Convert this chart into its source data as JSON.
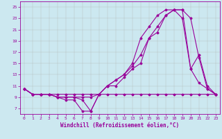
{
  "xlabel": "Windchill (Refroidissement éolien,°C)",
  "background_color": "#cce8f0",
  "line_color": "#990099",
  "xlim": [
    -0.5,
    23.5
  ],
  "ylim": [
    6.0,
    26.0
  ],
  "yticks": [
    7,
    9,
    11,
    13,
    15,
    17,
    19,
    21,
    23,
    25
  ],
  "xticks": [
    0,
    1,
    2,
    3,
    4,
    5,
    6,
    7,
    8,
    9,
    10,
    11,
    12,
    13,
    14,
    15,
    16,
    17,
    18,
    19,
    20,
    21,
    22,
    23
  ],
  "curve1_x": [
    0,
    1,
    2,
    3,
    4,
    5,
    6,
    7,
    8,
    9,
    10,
    11,
    12,
    13,
    14,
    15,
    16,
    17,
    18,
    19,
    20,
    21,
    22,
    23
  ],
  "curve1_y": [
    10.5,
    9.5,
    9.5,
    9.5,
    9.5,
    9.5,
    9.5,
    9.5,
    9.5,
    9.5,
    9.5,
    9.5,
    9.5,
    9.5,
    9.5,
    9.5,
    9.5,
    9.5,
    9.5,
    9.5,
    9.5,
    9.5,
    9.5,
    9.5
  ],
  "curve2_x": [
    0,
    1,
    2,
    3,
    4,
    5,
    6,
    7,
    8,
    9,
    10,
    11,
    12,
    13,
    14,
    15,
    16,
    17,
    18,
    19,
    20,
    21,
    22,
    23
  ],
  "curve2_y": [
    10.5,
    9.5,
    9.5,
    9.5,
    9.0,
    8.5,
    8.5,
    6.5,
    6.5,
    9.5,
    11.0,
    11.0,
    12.5,
    14.0,
    15.0,
    19.5,
    20.5,
    23.5,
    24.5,
    24.5,
    23.0,
    16.0,
    10.5,
    9.5
  ],
  "curve3_x": [
    0,
    1,
    2,
    3,
    4,
    5,
    6,
    7,
    8,
    9,
    10,
    11,
    12,
    13,
    14,
    15,
    16,
    17,
    18,
    19,
    20,
    21,
    22,
    23
  ],
  "curve3_y": [
    10.5,
    9.5,
    9.5,
    9.5,
    9.0,
    9.0,
    9.0,
    8.5,
    6.5,
    9.5,
    11.0,
    12.0,
    13.0,
    15.0,
    19.5,
    21.5,
    23.5,
    24.5,
    24.5,
    23.0,
    14.0,
    11.5,
    10.5,
    9.5
  ],
  "curve4_x": [
    0,
    1,
    2,
    3,
    4,
    5,
    6,
    7,
    8,
    9,
    10,
    11,
    12,
    13,
    14,
    15,
    16,
    17,
    18,
    19,
    20,
    21,
    22,
    23
  ],
  "curve4_y": [
    10.5,
    9.5,
    9.5,
    9.5,
    9.0,
    9.0,
    9.0,
    9.0,
    9.0,
    9.5,
    11.0,
    12.0,
    13.0,
    14.5,
    16.5,
    19.5,
    21.5,
    23.5,
    24.5,
    24.5,
    14.0,
    16.5,
    11.0,
    9.5
  ]
}
